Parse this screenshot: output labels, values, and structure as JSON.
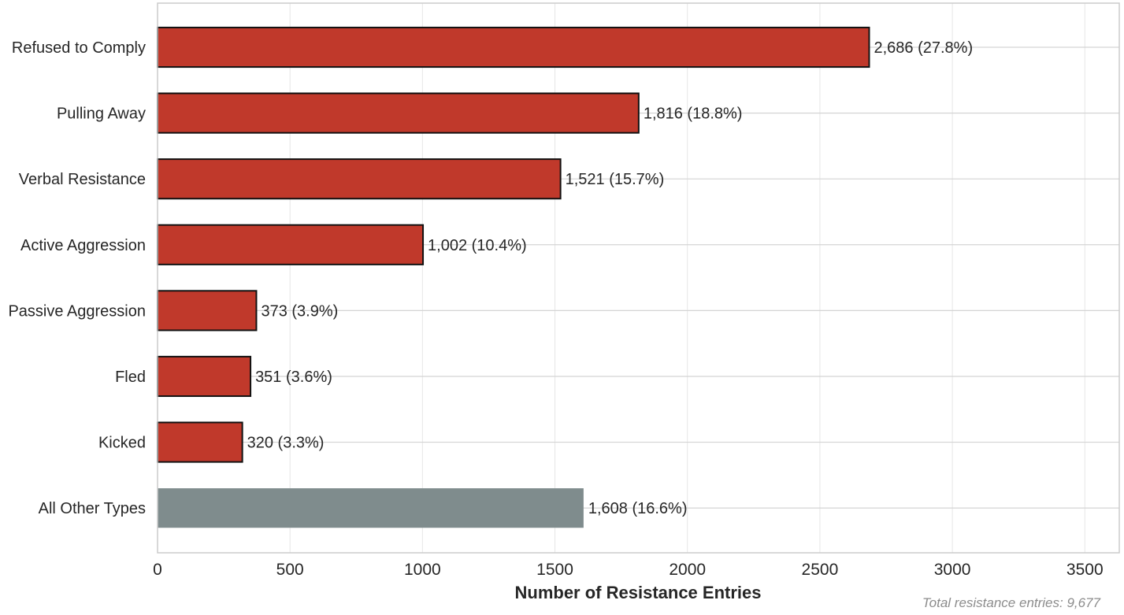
{
  "chart_data": {
    "type": "bar",
    "orientation": "horizontal",
    "categories": [
      "Refused to Comply",
      "Pulling Away",
      "Verbal Resistance",
      "Active Aggression",
      "Passive Aggression",
      "Fled",
      "Kicked",
      "All Other Types"
    ],
    "values": [
      2686,
      1816,
      1521,
      1002,
      373,
      351,
      320,
      1608
    ],
    "value_labels": [
      "2,686 (27.8%)",
      "1,816 (18.8%)",
      "1,521 (15.7%)",
      "1,002 (10.4%)",
      "373 (3.9%)",
      "351 (3.6%)",
      "320 (3.3%)",
      "1,608 (16.6%)"
    ],
    "bar_colors": [
      "#c0392b",
      "#c0392b",
      "#c0392b",
      "#c0392b",
      "#c0392b",
      "#c0392b",
      "#c0392b",
      "#7f8c8d"
    ],
    "xlabel": "Number of Resistance Entries",
    "ylabel": "",
    "xlim": [
      0,
      3630
    ],
    "xticks": [
      0,
      500,
      1000,
      1500,
      2000,
      2500,
      3000,
      3500
    ],
    "xtick_labels": [
      "0",
      "500",
      "1000",
      "1500",
      "2000",
      "2500",
      "3000",
      "3500"
    ],
    "grid": true,
    "footnote": "Total resistance entries: 9,677"
  }
}
